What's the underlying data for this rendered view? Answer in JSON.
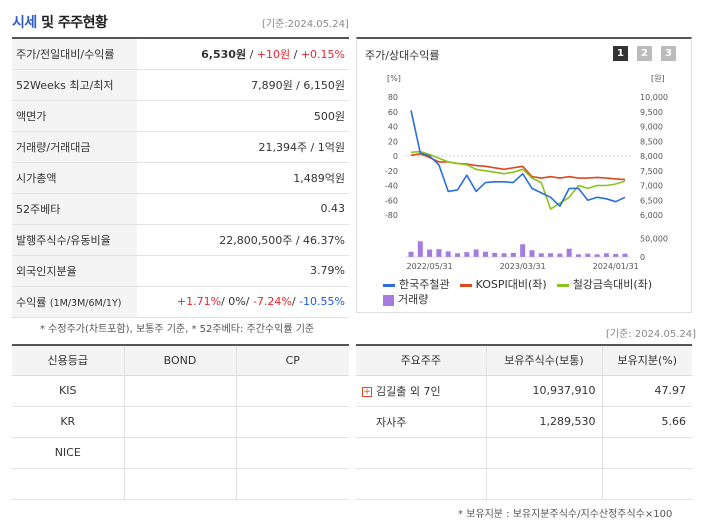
{
  "header": {
    "title_a": "시세",
    "title_b": "및 주주현황",
    "date": "[기준:2024.05.24]"
  },
  "price_rows": [
    {
      "key": "주가/전일대비/수익률",
      "v1": "6,530원",
      "sep1": " / ",
      "v2": "+10원",
      "sep2": " / ",
      "v3": "+0.15%"
    },
    {
      "key": "52Weeks 최고/최저",
      "value": "7,890원 / 6,150원"
    },
    {
      "key": "액면가",
      "value": "500원"
    },
    {
      "key": "거래량/거래대금",
      "value": "21,394주 / 1억원"
    },
    {
      "key": "시가총액",
      "value": "1,489억원"
    },
    {
      "key": "52주베타",
      "value": "0.43"
    },
    {
      "key": "발행주식수/유동비율",
      "value": "22,800,500주 / 46.37%"
    },
    {
      "key": "외국인지분율",
      "value": "3.79%"
    }
  ],
  "returns_row": {
    "key": "수익률",
    "period": "(1M/3M/6M/1Y)",
    "r1": "+1.71%",
    "r2": "0%",
    "r3": "-7.24%",
    "r4": "-10.55%"
  },
  "note1": "* 수정주가(차트포함), 보통주 기준, * 52주베타: 주간수익률 기준",
  "chart": {
    "title": "주가/상대수익률",
    "buttons": [
      "1",
      "2",
      "3"
    ],
    "date": "[기준: 2024.05.24]"
  },
  "colors": {
    "stock": "#2a6fdb",
    "kospi": "#d94a1f",
    "steel": "#8cc21e",
    "volume": "#a57be0",
    "btn_active": "#333333",
    "btn_inactive": "#bbbbbb"
  },
  "chart_data": {
    "type": "line",
    "left_axis": {
      "unit": "[%]",
      "ticks": [
        80,
        60,
        40,
        20,
        0,
        -20,
        -40,
        -60,
        -80
      ],
      "range": [
        -80,
        80
      ]
    },
    "right_axis": {
      "unit": "[원]",
      "ticks": [
        "10,000",
        "9,500",
        "9,000",
        "8,500",
        "8,000",
        "7,500",
        "7,000",
        "6,500",
        "6,000"
      ],
      "range": [
        6000,
        10000
      ]
    },
    "volume_axis": {
      "ticks": [
        "50,000",
        "0"
      ],
      "range": [
        0,
        80000
      ]
    },
    "x_ticks": [
      "2022/05/31",
      "2023/03/31",
      "2024/01/31"
    ],
    "x_tick_index": [
      2,
      12,
      22
    ],
    "series": [
      {
        "name": "한국주철관",
        "values": [
          62,
          4,
          0,
          -12,
          -48,
          -46,
          -26,
          -48,
          -36,
          -35,
          -35,
          -36,
          -24,
          -44,
          -50,
          -56,
          -68,
          -44,
          -44,
          -60,
          -56,
          -58,
          -62,
          -56
        ]
      },
      {
        "name": "KOSPI대비(좌)",
        "values": [
          1,
          3,
          -2,
          -8,
          -8,
          -10,
          -11,
          -13,
          -14,
          -16,
          -18,
          -16,
          -14,
          -28,
          -30,
          -28,
          -30,
          -28,
          -30,
          -30,
          -29,
          -30,
          -31,
          -32
        ]
      },
      {
        "name": "철강금속대비(좌)",
        "values": [
          5,
          6,
          2,
          -3,
          -8,
          -10,
          -12,
          -18,
          -20,
          -22,
          -24,
          -22,
          -18,
          -30,
          -36,
          -72,
          -64,
          -56,
          -40,
          -44,
          -40,
          -40,
          -38,
          -34
        ]
      }
    ],
    "volume": {
      "name": "거래량",
      "values": [
        14000,
        42000,
        20000,
        21000,
        15000,
        10000,
        13000,
        20000,
        14000,
        11000,
        10000,
        11000,
        34000,
        18000,
        10000,
        10000,
        9000,
        22000,
        7000,
        9000,
        7000,
        10000,
        8000,
        9000
      ]
    }
  },
  "credit_table": {
    "headers": [
      "신용등급",
      "BOND",
      "CP"
    ],
    "rows": [
      [
        "KIS",
        "",
        ""
      ],
      [
        "KR",
        "",
        ""
      ],
      [
        "NICE",
        "",
        ""
      ],
      [
        "",
        "",
        ""
      ]
    ]
  },
  "share_table": {
    "headers": [
      "주요주주",
      "보유주식수(보통)",
      "보유지분(%)"
    ],
    "rows": [
      {
        "name": "김길출 외 7인",
        "shares": "10,937,910",
        "pct": "47.97",
        "expand": "+"
      },
      {
        "name": "자사주",
        "shares": "1,289,530",
        "pct": "5.66"
      },
      {
        "name": "",
        "shares": "",
        "pct": ""
      },
      {
        "name": "",
        "shares": "",
        "pct": ""
      }
    ]
  },
  "note2": "* 보유지분 : 보유지분주식수/지수산정주식수×100"
}
